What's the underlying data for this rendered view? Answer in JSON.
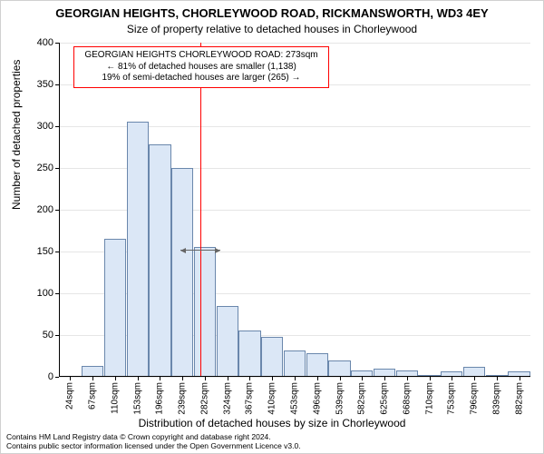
{
  "title": "GEORGIAN HEIGHTS, CHORLEYWOOD ROAD, RICKMANSWORTH, WD3 4EY",
  "subtitle": "Size of property relative to detached houses in Chorleywood",
  "y_axis_title": "Number of detached properties",
  "x_axis_title": "Distribution of detached houses by size in Chorleywood",
  "chart": {
    "type": "histogram",
    "ylim": [
      0,
      400
    ],
    "ytick_step": 50,
    "grid_color": "#e6e6e6",
    "bar_fill": "#dbe7f6",
    "bar_border": "#6a87ac",
    "bar_border_width": 1,
    "x_categories": [
      "24sqm",
      "67sqm",
      "110sqm",
      "153sqm",
      "196sqm",
      "239sqm",
      "282sqm",
      "324sqm",
      "367sqm",
      "410sqm",
      "453sqm",
      "496sqm",
      "539sqm",
      "582sqm",
      "625sqm",
      "668sqm",
      "710sqm",
      "753sqm",
      "796sqm",
      "839sqm",
      "882sqm"
    ],
    "values": [
      0,
      13,
      165,
      305,
      278,
      250,
      155,
      85,
      55,
      48,
      32,
      28,
      20,
      8,
      10,
      8,
      2,
      7,
      12,
      2,
      7
    ]
  },
  "marker": {
    "vline_color": "#ff0000",
    "vline_x_index": 5.8,
    "arrow_y_value": 152,
    "arrow_color": "#666666"
  },
  "annotation": {
    "line1": "GEORGIAN HEIGHTS CHORLEYWOOD ROAD: 273sqm",
    "line2": "← 81% of detached houses are smaller (1,138)",
    "line3": "19% of semi-detached houses are larger (265) →",
    "border_color": "#ff0000",
    "bg_color": "#ffffff"
  },
  "footer": {
    "line1": "Contains HM Land Registry data © Crown copyright and database right 2024.",
    "line2": "Contains public sector information licensed under the Open Government Licence v3.0."
  }
}
